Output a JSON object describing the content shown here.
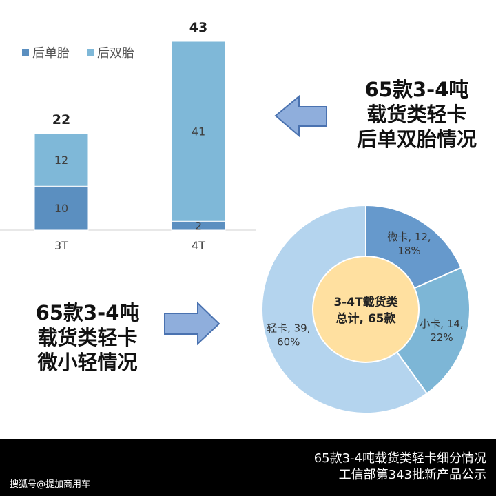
{
  "bar_legend": [
    {
      "label": "后单胎",
      "color": "#5B8FC0"
    },
    {
      "label": "后双胎",
      "color": "#7FB8D8"
    }
  ],
  "caption_right": [
    "65款3-4吨",
    "载货类轻卡",
    "后单双胎情况"
  ],
  "caption_left": [
    "65款3-4吨",
    "载货类轻卡",
    "微小轻情况"
  ],
  "donut_center": [
    "3-4T载货类",
    "总计, 65款"
  ],
  "footer": {
    "line1": "65款3-4吨载货类轻卡细分情况",
    "line2": "工信部第343批新产品公示",
    "watermark": "搜狐号@提加商用车"
  },
  "colors": {
    "arrow_fill": "#8FAEDC",
    "arrow_stroke": "#4A72B0",
    "donut_center_fill": "#FFE0A0"
  },
  "chart_data": [
    {
      "type": "bar",
      "stacked": true,
      "categories": [
        "3T",
        "4T"
      ],
      "series": [
        {
          "name": "后单胎",
          "values": [
            10,
            2
          ]
        },
        {
          "name": "后双胎",
          "values": [
            12,
            41
          ]
        }
      ],
      "totals": [
        22,
        43
      ],
      "legend": "top-left",
      "grid": false,
      "ylim": [
        0,
        43
      ]
    },
    {
      "type": "pie",
      "donut": true,
      "slices": [
        {
          "name": "微卡",
          "value": 12,
          "pct": "18%",
          "color": "#6699CC"
        },
        {
          "name": "小卡",
          "value": 14,
          "pct": "22%",
          "color": "#7DB6D6"
        },
        {
          "name": "轻卡",
          "value": 39,
          "pct": "60%",
          "color": "#B4D4EE"
        }
      ]
    }
  ]
}
